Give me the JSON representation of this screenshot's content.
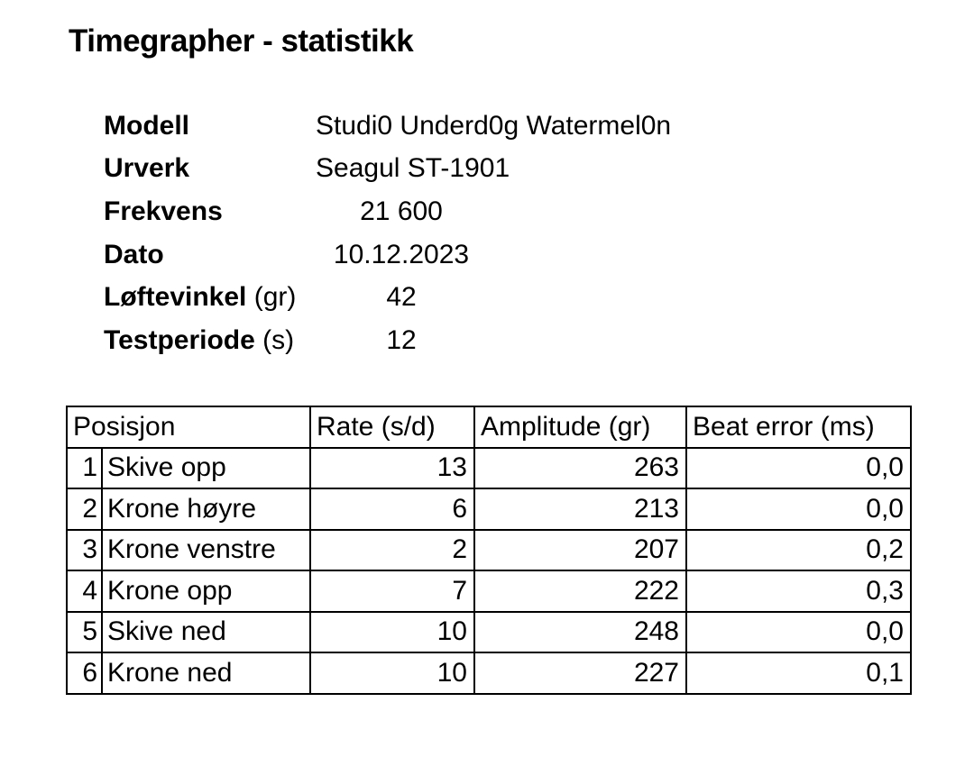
{
  "title": "Timegrapher - statistikk",
  "colors": {
    "text": "#000000",
    "background": "#ffffff",
    "border": "#000000"
  },
  "metadata": {
    "rows": [
      {
        "label": "Modell",
        "suffix": "",
        "value": "Studi0 Underd0g Watermel0n"
      },
      {
        "label": "Urverk",
        "suffix": "",
        "value": "Seagul ST-1901"
      },
      {
        "label": "Frekvens",
        "suffix": "",
        "value": "21 600"
      },
      {
        "label": "Dato",
        "suffix": "",
        "value": "10.12.2023"
      },
      {
        "label": "Løftevinkel",
        "suffix": " (gr)",
        "value": "42"
      },
      {
        "label": "Testperiode",
        "suffix": " (s)",
        "value": "12"
      }
    ]
  },
  "table": {
    "headers": [
      "Posisjon",
      "Rate (s/d)",
      "Amplitude (gr)",
      "Beat error (ms)"
    ],
    "rows": [
      {
        "num": "1",
        "position": "Skive opp",
        "rate": "13",
        "amplitude": "263",
        "beat_error": "0,0"
      },
      {
        "num": "2",
        "position": "Krone høyre",
        "rate": "6",
        "amplitude": "213",
        "beat_error": "0,0"
      },
      {
        "num": "3",
        "position": "Krone venstre",
        "rate": "2",
        "amplitude": "207",
        "beat_error": "0,2"
      },
      {
        "num": "4",
        "position": "Krone opp",
        "rate": "7",
        "amplitude": "222",
        "beat_error": "0,3"
      },
      {
        "num": "5",
        "position": "Skive ned",
        "rate": "10",
        "amplitude": "248",
        "beat_error": "0,0"
      },
      {
        "num": "6",
        "position": "Krone ned",
        "rate": "10",
        "amplitude": "227",
        "beat_error": "0,1"
      }
    ]
  }
}
